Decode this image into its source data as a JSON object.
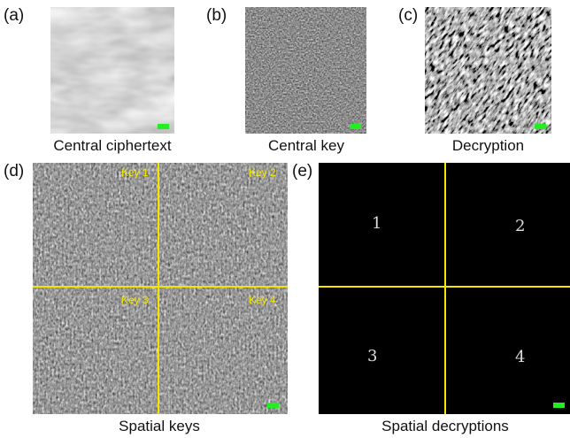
{
  "panels": {
    "a": {
      "letter": "(a)",
      "caption": "Central ciphertext"
    },
    "b": {
      "letter": "(b)",
      "caption": "Central key"
    },
    "c": {
      "letter": "(c)",
      "caption": "Decryption"
    },
    "d": {
      "letter": "(d)",
      "caption": "Spatial keys",
      "quadrant_labels": [
        "Key 1",
        "Key 2",
        "Key 3",
        "Key 4"
      ]
    },
    "e": {
      "letter": "(e)",
      "caption": "Spatial decryptions",
      "digits": [
        "1",
        "2",
        "3",
        "4"
      ]
    }
  },
  "colors": {
    "scale_bar": "#22ee22",
    "divider_lines": "#f2e600",
    "key_label": "#f2e600",
    "background": "#ffffff"
  }
}
